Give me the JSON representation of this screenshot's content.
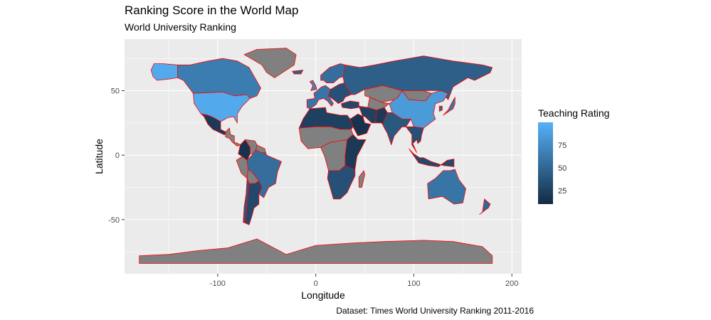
{
  "chart_data": {
    "type": "map",
    "title": "Ranking Score in the World Map",
    "subtitle": "World University Ranking",
    "xlabel": "Longitude",
    "ylabel": "Latitude",
    "caption": "Dataset: Times World University Ranking 2011-2016",
    "xlim": [
      -195,
      210
    ],
    "ylim": [
      -92,
      90
    ],
    "x_ticks": [
      -100,
      0,
      100,
      200
    ],
    "y_ticks": [
      -50,
      0,
      50
    ],
    "x_tick_labels": [
      "-100",
      "0",
      "100",
      "200"
    ],
    "y_tick_labels": [
      "-50",
      "0",
      "50"
    ],
    "grid": true,
    "border_color": "#ff0000",
    "missing_color": "#808080",
    "panel_background": "#ebebeb",
    "legend": {
      "title": "Teaching Rating",
      "position": "right",
      "min": 10,
      "max": 100,
      "low_color": "#132B43",
      "high_color": "#56B1F7",
      "breaks": [
        25,
        50,
        75
      ],
      "break_labels": [
        "25",
        "50",
        "75"
      ]
    },
    "regions": [
      {
        "name": "United States",
        "value": 95
      },
      {
        "name": "Alaska",
        "value": 95
      },
      {
        "name": "Canada",
        "value": 65
      },
      {
        "name": "Mexico",
        "value": 20
      },
      {
        "name": "Central America",
        "value": null
      },
      {
        "name": "Colombia",
        "value": 15
      },
      {
        "name": "Venezuela",
        "value": null
      },
      {
        "name": "Guianas",
        "value": null
      },
      {
        "name": "Peru",
        "value": null
      },
      {
        "name": "Brazil",
        "value": 55
      },
      {
        "name": "Bolivia",
        "value": null
      },
      {
        "name": "Chile",
        "value": 40
      },
      {
        "name": "Argentina",
        "value": 30
      },
      {
        "name": "Greenland",
        "value": null
      },
      {
        "name": "Iceland",
        "value": 45
      },
      {
        "name": "United Kingdom",
        "value": 70
      },
      {
        "name": "Scandinavia",
        "value": 55
      },
      {
        "name": "Western Europe",
        "value": 60
      },
      {
        "name": "Eastern Europe",
        "value": 35
      },
      {
        "name": "Russia",
        "value": 45
      },
      {
        "name": "Kazakhstan",
        "value": null
      },
      {
        "name": "Central Asia",
        "value": null
      },
      {
        "name": "Mongolia",
        "value": null
      },
      {
        "name": "China",
        "value": 85
      },
      {
        "name": "Japan",
        "value": 60
      },
      {
        "name": "South Korea",
        "value": 50
      },
      {
        "name": "India",
        "value": 40
      },
      {
        "name": "Pakistan",
        "value": 20
      },
      {
        "name": "Iran",
        "value": 25
      },
      {
        "name": "Saudi Arabia",
        "value": 15
      },
      {
        "name": "Turkey",
        "value": 30
      },
      {
        "name": "Southeast Asia",
        "value": 35
      },
      {
        "name": "Indonesia",
        "value": 30
      },
      {
        "name": "Australia",
        "value": 60
      },
      {
        "name": "New Zealand",
        "value": 50
      },
      {
        "name": "North Africa",
        "value": 25
      },
      {
        "name": "Sahara",
        "value": null
      },
      {
        "name": "Central Africa",
        "value": null
      },
      {
        "name": "East Africa",
        "value": 20
      },
      {
        "name": "South Africa",
        "value": 35
      },
      {
        "name": "Madagascar",
        "value": null
      },
      {
        "name": "Antarctica",
        "value": null
      }
    ]
  }
}
